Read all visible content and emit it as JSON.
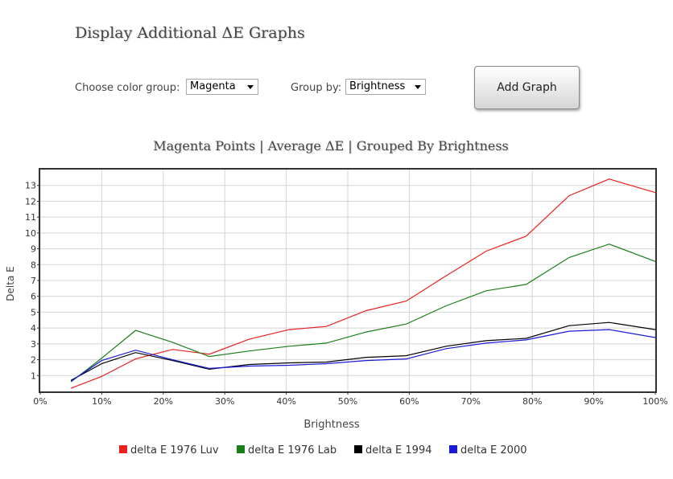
{
  "header": {
    "title": "Display Additional ΔE Graphs"
  },
  "controls": {
    "color_group_label": "Choose color group:",
    "color_group_value": "Magenta",
    "group_by_label": "Group by:",
    "group_by_value": "Brightness",
    "add_button_label": "Add Graph"
  },
  "chart_data": {
    "type": "line",
    "title": "Magenta Points | Average ΔE | Grouped By Brightness",
    "xlabel": "Brightness",
    "ylabel": "Delta E",
    "xlim": [
      0,
      100
    ],
    "ylim": [
      0,
      14
    ],
    "x_ticks": [
      "0%",
      "10%",
      "20%",
      "30%",
      "40%",
      "50%",
      "60%",
      "70%",
      "80%",
      "90%",
      "100%"
    ],
    "y_ticks": [
      "1",
      "2",
      "3",
      "4",
      "5",
      "6",
      "7",
      "8",
      "9",
      "10",
      "11",
      "12",
      "13"
    ],
    "grid": true,
    "legend_position": "bottom",
    "x": [
      5,
      10,
      15.5,
      21.5,
      27.5,
      34,
      40.5,
      46.5,
      53,
      59.5,
      66,
      72.5,
      79,
      86,
      92.5,
      100
    ],
    "series": [
      {
        "name": "delta E 1976 Luv",
        "color": "#e8211e",
        "values": [
          0.2,
          0.95,
          2.05,
          2.65,
          2.35,
          3.3,
          3.9,
          4.1,
          5.1,
          5.7,
          7.3,
          8.85,
          9.8,
          12.35,
          13.4,
          12.55
        ]
      },
      {
        "name": "delta E 1976 Lab",
        "color": "#1a7f1a",
        "values": [
          0.6,
          2.1,
          3.85,
          3.1,
          2.2,
          2.55,
          2.85,
          3.05,
          3.75,
          4.25,
          5.4,
          6.35,
          6.75,
          8.45,
          9.3,
          8.2
        ]
      },
      {
        "name": "delta E 1994",
        "color": "#000000",
        "values": [
          0.7,
          1.75,
          2.45,
          1.95,
          1.4,
          1.7,
          1.8,
          1.85,
          2.15,
          2.25,
          2.85,
          3.2,
          3.35,
          4.15,
          4.35,
          3.9
        ]
      },
      {
        "name": "delta E 2000",
        "color": "#1a1ad6",
        "values": [
          0.65,
          1.95,
          2.6,
          2.0,
          1.45,
          1.6,
          1.65,
          1.75,
          1.95,
          2.05,
          2.7,
          3.05,
          3.25,
          3.8,
          3.9,
          3.4
        ]
      }
    ]
  }
}
